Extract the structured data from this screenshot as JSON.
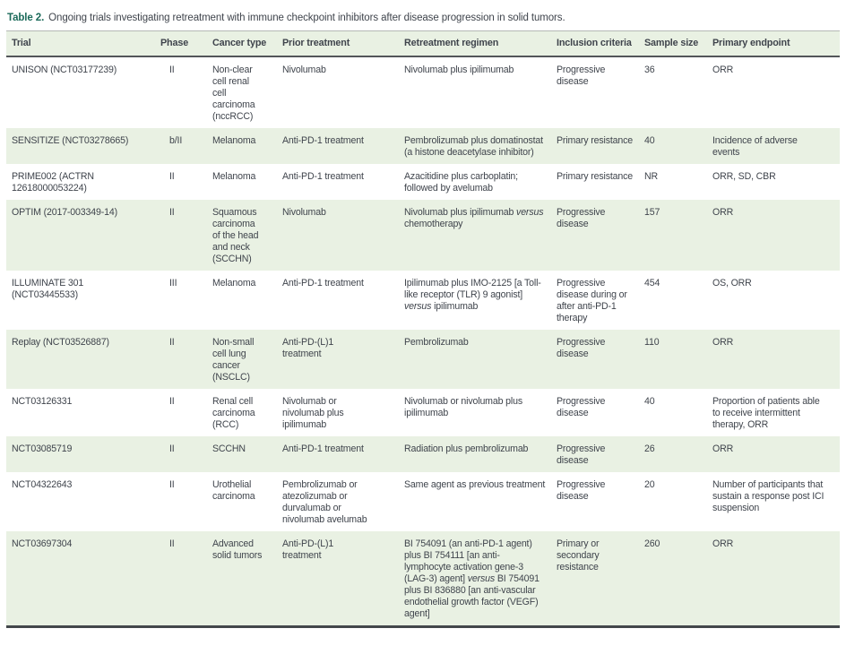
{
  "table": {
    "label": "Table 2.",
    "caption": "Ongoing trials investigating retreatment with immune checkpoint inhibitors after disease progression in solid tumors.",
    "columns": [
      "Trial",
      "Phase",
      "Cancer type",
      "Prior treatment",
      "Retreatment regimen",
      "Inclusion criteria",
      "Sample size",
      "Primary endpoint"
    ],
    "rows": [
      {
        "trial": "UNISON (NCT03177239)",
        "phase": "II",
        "cancer_type": "Non-clear cell renal cell carcinoma (nccRCC)",
        "prior_treatment": "Nivolumab",
        "retreatment_regimen": "Nivolumab plus ipilimumab",
        "inclusion_criteria": "Progressive disease",
        "sample_size": "36",
        "primary_endpoint": "ORR"
      },
      {
        "trial": "SENSITIZE (NCT03278665)",
        "phase": "b/II",
        "cancer_type": "Melanoma",
        "prior_treatment": "Anti-PD-1 treatment",
        "retreatment_regimen": "Pembrolizumab plus domatinostat (a histone deacetylase inhibitor)",
        "inclusion_criteria": "Primary resistance",
        "sample_size": "40",
        "primary_endpoint": "Incidence of adverse events"
      },
      {
        "trial": "PRIME002 (ACTRN 12618000053224)",
        "phase": "II",
        "cancer_type": "Melanoma",
        "prior_treatment": "Anti-PD-1 treatment",
        "retreatment_regimen": "Azacitidine plus carboplatin; followed by avelumab",
        "inclusion_criteria": "Primary resistance",
        "sample_size": "NR",
        "primary_endpoint": "ORR, SD, CBR"
      },
      {
        "trial": "OPTIM (2017-003349-14)",
        "phase": "II",
        "cancer_type": "Squamous carcinoma of the head and neck (SCCHN)",
        "prior_treatment": "Nivolumab",
        "retreatment_regimen": "Nivolumab plus ipilimumab versus chemotherapy",
        "inclusion_criteria": "Progressive disease",
        "sample_size": "157",
        "primary_endpoint": "ORR"
      },
      {
        "trial": "ILLUMINATE 301 (NCT03445533)",
        "phase": "III",
        "cancer_type": "Melanoma",
        "prior_treatment": "Anti-PD-1 treatment",
        "retreatment_regimen": "Ipilimumab plus IMO-2125 [a Toll-like receptor (TLR) 9 agonist] versus ipilimumab",
        "inclusion_criteria": "Progressive disease during or after anti-PD-1 therapy",
        "sample_size": "454",
        "primary_endpoint": "OS, ORR"
      },
      {
        "trial": "Replay (NCT03526887)",
        "phase": "II",
        "cancer_type": "Non-small cell lung cancer (NSCLC)",
        "prior_treatment": "Anti-PD-(L)1 treatment",
        "retreatment_regimen": "Pembrolizumab",
        "inclusion_criteria": "Progressive disease",
        "sample_size": "110",
        "primary_endpoint": "ORR"
      },
      {
        "trial": "NCT03126331",
        "phase": "II",
        "cancer_type": "Renal cell carcinoma (RCC)",
        "prior_treatment": "Nivolumab or nivolumab plus ipilimumab",
        "retreatment_regimen": "Nivolumab or nivolumab plus ipilimumab",
        "inclusion_criteria": "Progressive disease",
        "sample_size": "40",
        "primary_endpoint": "Proportion of patients able to receive intermittent therapy, ORR"
      },
      {
        "trial": "NCT03085719",
        "phase": "II",
        "cancer_type": "SCCHN",
        "prior_treatment": "Anti-PD-1 treatment",
        "retreatment_regimen": "Radiation plus pembrolizumab",
        "inclusion_criteria": "Progressive disease",
        "sample_size": "26",
        "primary_endpoint": "ORR"
      },
      {
        "trial": "NCT04322643",
        "phase": "II",
        "cancer_type": "Urothelial carcinoma",
        "prior_treatment": "Pembrolizumab or atezolizumab or durvalumab or nivolumab avelumab",
        "retreatment_regimen": "Same agent as previous treatment",
        "inclusion_criteria": "Progressive disease",
        "sample_size": "20",
        "primary_endpoint": "Number of participants that sustain a response post ICI suspension"
      },
      {
        "trial": "NCT03697304",
        "phase": "II",
        "cancer_type": "Advanced solid tumors",
        "prior_treatment": "Anti-PD-(L)1 treatment",
        "retreatment_regimen": "BI 754091 (an anti-PD-1 agent) plus BI 754111 [an anti-lymphocyte activation gene-3 (LAG-3) agent] versus BI 754091 plus BI 836880 [an anti-vascular endothelial growth factor (VEGF) agent]",
        "inclusion_criteria": "Primary or secondary resistance",
        "sample_size": "260",
        "primary_endpoint": "ORR"
      }
    ],
    "colors": {
      "label_accent": "#1b6a5a",
      "row_band": "#e9f1e3",
      "text": "#3f444c",
      "header_rule": "#53565a",
      "bottom_rule": "#43474b"
    }
  }
}
